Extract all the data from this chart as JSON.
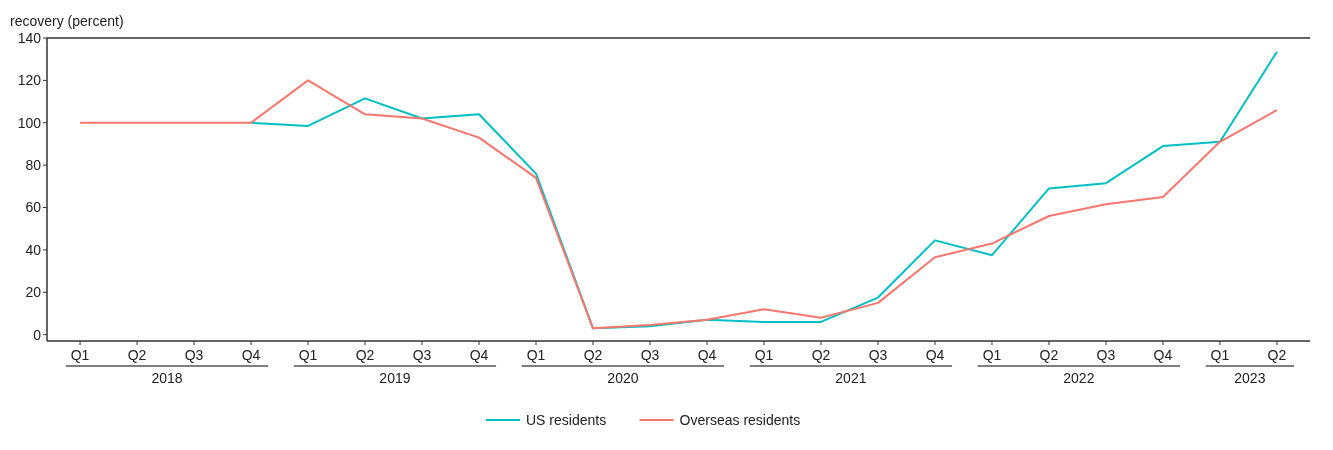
{
  "chart_data": {
    "type": "line",
    "ylabel": "recovery (percent)",
    "categories": [
      "Q1",
      "Q2",
      "Q3",
      "Q4",
      "Q1",
      "Q2",
      "Q3",
      "Q4",
      "Q1",
      "Q2",
      "Q3",
      "Q4",
      "Q1",
      "Q2",
      "Q3",
      "Q4",
      "Q1",
      "Q2",
      "Q3",
      "Q4",
      "Q1",
      "Q2"
    ],
    "annotations": [
      "2018",
      "2019",
      "2020",
      "2021",
      "2022",
      "2023"
    ],
    "series": [
      {
        "name": "US residents",
        "color": "#00bfc4",
        "values": [
          null,
          null,
          null,
          100,
          98.5,
          111.5,
          102,
          104,
          76,
          3,
          4,
          7,
          6,
          6,
          17.5,
          44.5,
          37.5,
          69,
          71.5,
          89,
          91,
          133.5
        ]
      },
      {
        "name": "Overseas residents",
        "color": "#f8766d",
        "values": [
          100,
          100,
          100,
          100,
          120,
          104,
          102,
          93,
          74,
          3,
          4.5,
          7,
          12,
          8,
          15,
          36.5,
          43,
          56,
          61.5,
          65,
          91,
          106
        ]
      }
    ],
    "ylim": [
      -3,
      140
    ],
    "yticks": [
      0,
      20,
      40,
      60,
      80,
      100,
      120,
      140
    ],
    "grid": false,
    "legend": "bottom"
  }
}
